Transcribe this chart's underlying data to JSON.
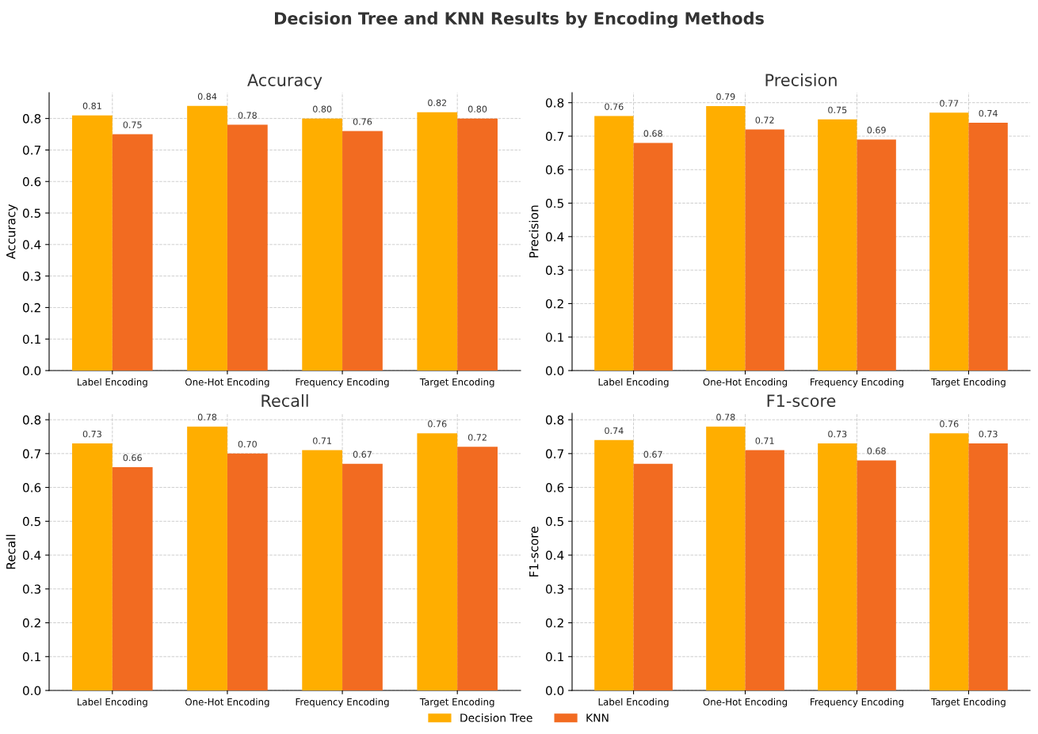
{
  "chart_data": [
    {
      "type": "bar",
      "title": "Accuracy",
      "ylabel": "Accuracy",
      "categories": [
        "Label Encoding",
        "One-Hot Encoding",
        "Frequency Encoding",
        "Target Encoding"
      ],
      "series": [
        {
          "name": "Decision Tree",
          "color": "#ffae00",
          "values": [
            0.81,
            0.84,
            0.8,
            0.82
          ],
          "value_labels": [
            "0.81",
            "0.84",
            "0.80",
            "0.82"
          ]
        },
        {
          "name": "KNN",
          "color": "#f26b21",
          "values": [
            0.75,
            0.78,
            0.76,
            0.8
          ],
          "value_labels": [
            "0.75",
            "0.78",
            "0.76",
            "0.80"
          ]
        }
      ],
      "ylim": [
        0,
        0.882
      ],
      "yticks": [
        {
          "value": 0,
          "label": "0.0"
        },
        {
          "value": 0.1,
          "label": "0.1"
        },
        {
          "value": 0.2,
          "label": "0.2"
        },
        {
          "value": 0.3,
          "label": "0.3"
        },
        {
          "value": 0.4,
          "label": "0.4"
        },
        {
          "value": 0.5,
          "label": "0.5"
        },
        {
          "value": 0.6,
          "label": "0.6"
        },
        {
          "value": 0.7,
          "label": "0.7"
        },
        {
          "value": 0.8,
          "label": "0.8"
        }
      ],
      "grid": true,
      "legend": "bottom"
    },
    {
      "type": "bar",
      "title": "Precision",
      "ylabel": "Precision",
      "categories": [
        "Label Encoding",
        "One-Hot Encoding",
        "Frequency Encoding",
        "Target Encoding"
      ],
      "series": [
        {
          "color": "#ffae00",
          "values": [
            0.76,
            0.79,
            0.75,
            0.77
          ],
          "value_labels": [
            "0.76",
            "0.79",
            "0.75",
            "0.77"
          ]
        },
        {
          "color": "#f26b21",
          "values": [
            0.68,
            0.72,
            0.69,
            0.74
          ],
          "value_labels": [
            "0.68",
            "0.72",
            "0.69",
            "0.74"
          ]
        }
      ],
      "ylim": [
        0,
        0.83
      ],
      "yticks": [
        {
          "value": 0,
          "label": "0.0"
        },
        {
          "value": 0.1,
          "label": "0.1"
        },
        {
          "value": 0.2,
          "label": "0.2"
        },
        {
          "value": 0.3,
          "label": "0.3"
        },
        {
          "value": 0.4,
          "label": "0.4"
        },
        {
          "value": 0.5,
          "label": "0.5"
        },
        {
          "value": 0.6,
          "label": "0.6"
        },
        {
          "value": 0.7,
          "label": "0.7"
        },
        {
          "value": 0.8,
          "label": "0.8"
        }
      ],
      "grid": true
    },
    {
      "type": "bar",
      "title": "Recall",
      "ylabel": "Recall",
      "categories": [
        "Label Encoding",
        "One-Hot Encoding",
        "Frequency Encoding",
        "Target Encoding"
      ],
      "series": [
        {
          "color": "#ffae00",
          "values": [
            0.73,
            0.78,
            0.71,
            0.76
          ],
          "value_labels": [
            "0.73",
            "0.78",
            "0.71",
            "0.76"
          ]
        },
        {
          "color": "#f26b21",
          "values": [
            0.66,
            0.7,
            0.67,
            0.72
          ],
          "value_labels": [
            "0.66",
            "0.70",
            "0.67",
            "0.72"
          ]
        }
      ],
      "ylim": [
        0,
        0.819
      ],
      "yticks": [
        {
          "value": 0,
          "label": "0.0"
        },
        {
          "value": 0.1,
          "label": "0.1"
        },
        {
          "value": 0.2,
          "label": "0.2"
        },
        {
          "value": 0.3,
          "label": "0.3"
        },
        {
          "value": 0.4,
          "label": "0.4"
        },
        {
          "value": 0.5,
          "label": "0.5"
        },
        {
          "value": 0.6,
          "label": "0.6"
        },
        {
          "value": 0.7,
          "label": "0.7"
        },
        {
          "value": 0.8,
          "label": "0.8"
        }
      ],
      "grid": true
    },
    {
      "type": "bar",
      "title": "F1-score",
      "ylabel": "F1-score",
      "categories": [
        "Label Encoding",
        "One-Hot Encoding",
        "Frequency Encoding",
        "Target Encoding"
      ],
      "series": [
        {
          "color": "#ffae00",
          "values": [
            0.74,
            0.78,
            0.73,
            0.76
          ],
          "value_labels": [
            "0.74",
            "0.78",
            "0.73",
            "0.76"
          ]
        },
        {
          "color": "#f26b21",
          "values": [
            0.67,
            0.71,
            0.68,
            0.73
          ],
          "value_labels": [
            "0.67",
            "0.71",
            "0.68",
            "0.73"
          ]
        }
      ],
      "ylim": [
        0,
        0.819
      ],
      "yticks": [
        {
          "value": 0,
          "label": "0.0"
        },
        {
          "value": 0.1,
          "label": "0.1"
        },
        {
          "value": 0.2,
          "label": "0.2"
        },
        {
          "value": 0.3,
          "label": "0.3"
        },
        {
          "value": 0.4,
          "label": "0.4"
        },
        {
          "value": 0.5,
          "label": "0.5"
        },
        {
          "value": 0.6,
          "label": "0.6"
        },
        {
          "value": 0.7,
          "label": "0.7"
        },
        {
          "value": 0.8,
          "label": "0.8"
        }
      ],
      "grid": true,
      "annotations": [
        "Decision Tree and KNN Results by Encoding Methods"
      ]
    }
  ]
}
